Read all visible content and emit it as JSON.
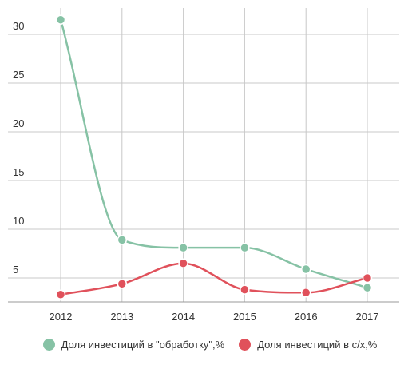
{
  "chart_data": {
    "type": "line",
    "x": [
      "2012",
      "2013",
      "2014",
      "2015",
      "2016",
      "2017"
    ],
    "series": [
      {
        "name": "Доля инвестиций в \"обработку\",%",
        "color": "#86c2a5",
        "values": [
          31.5,
          8.9,
          8.1,
          8.1,
          5.9,
          4.0
        ]
      },
      {
        "name": "Доля инвестиций в с/х,%",
        "color": "#e0515b",
        "values": [
          3.3,
          4.4,
          6.5,
          3.8,
          3.5,
          5.0
        ]
      }
    ],
    "y_ticks": [
      "5",
      "10",
      "15",
      "20",
      "25",
      "30"
    ],
    "ylim": [
      2.5,
      32
    ],
    "grid": true,
    "legend_position": "bottom"
  }
}
